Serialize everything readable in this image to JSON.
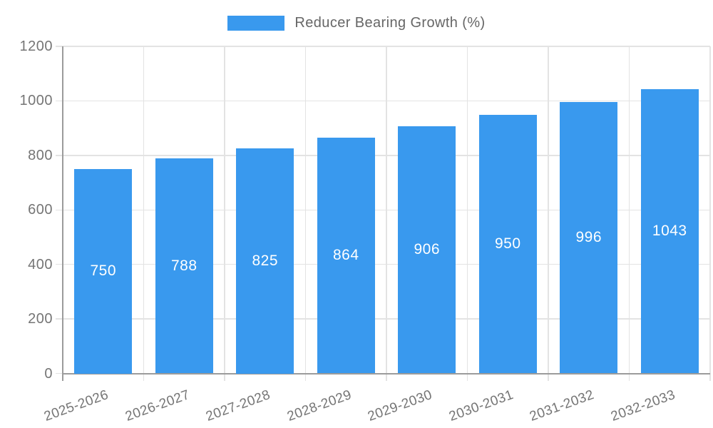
{
  "chart_data": {
    "type": "bar",
    "title": "",
    "legend": {
      "label": "Reducer Bearing Growth (%)",
      "position": "top"
    },
    "categories": [
      "2025-2026",
      "2026-2027",
      "2027-2028",
      "2028-2029",
      "2029-2030",
      "2030-2031",
      "2031-2032",
      "2032-2033"
    ],
    "series": [
      {
        "name": "Reducer Bearing Growth (%)",
        "values": [
          750,
          788,
          825,
          864,
          906,
          950,
          996,
          1043
        ]
      }
    ],
    "value_labels_shown": true,
    "xlabel": "",
    "ylabel": "",
    "ylim": [
      0,
      1200
    ],
    "yticks": [
      0,
      200,
      400,
      600,
      800,
      1000,
      1200
    ],
    "grid": "both",
    "xtick_rotation_deg": -20
  },
  "colors": {
    "bar": "#3999EE",
    "bar_value_label": "#FFFFFF",
    "grid": "#E3E3E3",
    "axis": "#9B9B9B",
    "tick_label": "#757575",
    "legend_text": "#666666",
    "background": "#FFFFFF"
  }
}
